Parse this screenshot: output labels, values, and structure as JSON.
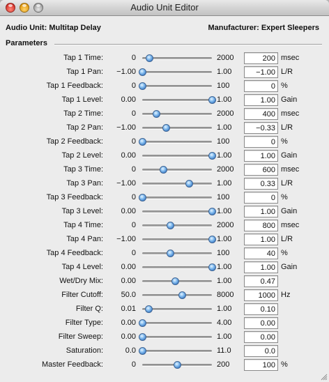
{
  "window": {
    "title": "Audio Unit Editor"
  },
  "header": {
    "audio_unit": "Audio Unit: Multitap Delay",
    "manufacturer": "Manufacturer: Expert Sleepers"
  },
  "section": {
    "label": "Parameters"
  },
  "colors": {
    "slider_thumb": "#3a7cc8",
    "window_bg": "#ececec"
  },
  "parameters": [
    {
      "name": "Tap 1 Time:",
      "min": "0",
      "max": "2000",
      "value": "200",
      "unit": "msec",
      "position": 0.1
    },
    {
      "name": "Tap 1 Pan:",
      "min": "−1.00",
      "max": "1.00",
      "value": "−1.00",
      "unit": "L/R",
      "position": 0.0
    },
    {
      "name": "Tap 1 Feedback:",
      "min": "0",
      "max": "100",
      "value": "0",
      "unit": "%",
      "position": 0.0
    },
    {
      "name": "Tap 1 Level:",
      "min": "0.00",
      "max": "1.00",
      "value": "1.00",
      "unit": "Gain",
      "position": 1.0
    },
    {
      "name": "Tap 2 Time:",
      "min": "0",
      "max": "2000",
      "value": "400",
      "unit": "msec",
      "position": 0.2
    },
    {
      "name": "Tap 2 Pan:",
      "min": "−1.00",
      "max": "1.00",
      "value": "−0.33",
      "unit": "L/R",
      "position": 0.335
    },
    {
      "name": "Tap 2 Feedback:",
      "min": "0",
      "max": "100",
      "value": "0",
      "unit": "%",
      "position": 0.0
    },
    {
      "name": "Tap 2 Level:",
      "min": "0.00",
      "max": "1.00",
      "value": "1.00",
      "unit": "Gain",
      "position": 1.0
    },
    {
      "name": "Tap 3 Time:",
      "min": "0",
      "max": "2000",
      "value": "600",
      "unit": "msec",
      "position": 0.3
    },
    {
      "name": "Tap 3 Pan:",
      "min": "−1.00",
      "max": "1.00",
      "value": "0.33",
      "unit": "L/R",
      "position": 0.665
    },
    {
      "name": "Tap 3 Feedback:",
      "min": "0",
      "max": "100",
      "value": "0",
      "unit": "%",
      "position": 0.0
    },
    {
      "name": "Tap 3 Level:",
      "min": "0.00",
      "max": "1.00",
      "value": "1.00",
      "unit": "Gain",
      "position": 1.0
    },
    {
      "name": "Tap 4 Time:",
      "min": "0",
      "max": "2000",
      "value": "800",
      "unit": "msec",
      "position": 0.4
    },
    {
      "name": "Tap 4 Pan:",
      "min": "−1.00",
      "max": "1.00",
      "value": "1.00",
      "unit": "L/R",
      "position": 1.0
    },
    {
      "name": "Tap 4 Feedback:",
      "min": "0",
      "max": "100",
      "value": "40",
      "unit": "%",
      "position": 0.4
    },
    {
      "name": "Tap 4 Level:",
      "min": "0.00",
      "max": "1.00",
      "value": "1.00",
      "unit": "Gain",
      "position": 1.0
    },
    {
      "name": "Wet/Dry Mix:",
      "min": "0.00",
      "max": "1.00",
      "value": "0.47",
      "unit": "",
      "position": 0.47
    },
    {
      "name": "Filter Cutoff:",
      "min": "50.0",
      "max": "8000",
      "value": "1000",
      "unit": "Hz",
      "position": 0.57
    },
    {
      "name": "Filter Q:",
      "min": "0.01",
      "max": "1.00",
      "value": "0.10",
      "unit": "",
      "position": 0.09
    },
    {
      "name": "Filter Type:",
      "min": "0.00",
      "max": "4.00",
      "value": "0.00",
      "unit": "",
      "position": 0.0
    },
    {
      "name": "Filter Sweep:",
      "min": "0.00",
      "max": "1.00",
      "value": "0.00",
      "unit": "",
      "position": 0.0
    },
    {
      "name": "Saturation:",
      "min": "0.0",
      "max": "11.0",
      "value": "0.0",
      "unit": "",
      "position": 0.0
    },
    {
      "name": "Master Feedback:",
      "min": "0",
      "max": "200",
      "value": "100",
      "unit": "%",
      "position": 0.5
    }
  ]
}
